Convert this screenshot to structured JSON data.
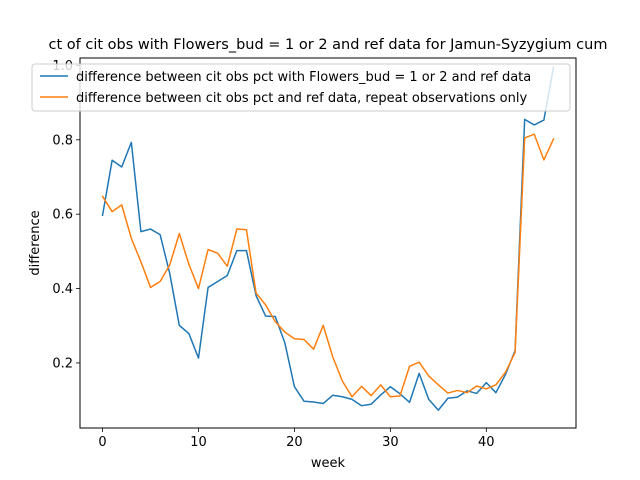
{
  "chart_data": {
    "type": "line",
    "title": "ct of cit obs with Flowers_bud = 1 or 2 and ref data for Jamun-Syzygium cum",
    "xlabel": "week",
    "ylabel": "difference",
    "xlim": [
      -2.35,
      49.35
    ],
    "ylim": [
      0.025,
      1.02
    ],
    "x_ticks": [
      0,
      10,
      20,
      30,
      40
    ],
    "y_ticks": [
      0.2,
      0.4,
      0.6,
      0.8,
      1.0
    ],
    "y_tick_labels": [
      "0.2",
      "0.4",
      "0.6",
      "0.8",
      "1.0"
    ],
    "legend_position": "upper center",
    "grid": false,
    "x": [
      0,
      1,
      2,
      3,
      4,
      5,
      6,
      7,
      8,
      9,
      10,
      11,
      12,
      13,
      14,
      15,
      16,
      17,
      18,
      19,
      20,
      21,
      22,
      23,
      24,
      25,
      26,
      27,
      28,
      29,
      30,
      31,
      32,
      33,
      34,
      35,
      36,
      37,
      38,
      39,
      40,
      41,
      42,
      43,
      44,
      45,
      46,
      47
    ],
    "series": [
      {
        "name": "difference between cit obs pct with Flowers_bud = 1 or 2 and ref data",
        "color": "#1f77b4",
        "values": [
          0.597,
          0.745,
          0.727,
          0.793,
          0.553,
          0.56,
          0.545,
          0.441,
          0.301,
          0.279,
          0.213,
          0.403,
          0.419,
          0.435,
          0.502,
          0.502,
          0.381,
          0.326,
          0.325,
          0.254,
          0.136,
          0.097,
          0.095,
          0.091,
          0.113,
          0.109,
          0.102,
          0.085,
          0.089,
          0.114,
          0.136,
          0.117,
          0.094,
          0.172,
          0.102,
          0.073,
          0.105,
          0.108,
          0.125,
          0.118,
          0.147,
          0.12,
          0.169,
          0.233,
          0.855,
          0.84,
          0.853,
          0.995
        ]
      },
      {
        "name": "difference between cit obs pct and ref data, repeat observations only",
        "color": "#ff7f0e",
        "values": [
          0.648,
          0.607,
          0.625,
          0.535,
          0.472,
          0.403,
          0.419,
          0.463,
          0.548,
          0.465,
          0.4,
          0.505,
          0.495,
          0.46,
          0.56,
          0.558,
          0.388,
          0.356,
          0.311,
          0.283,
          0.265,
          0.263,
          0.237,
          0.301,
          0.216,
          0.151,
          0.109,
          0.137,
          0.112,
          0.141,
          0.109,
          0.111,
          0.191,
          0.202,
          0.165,
          0.141,
          0.119,
          0.126,
          0.12,
          0.138,
          0.13,
          0.141,
          0.175,
          0.228,
          0.805,
          0.815,
          0.746,
          0.802
        ]
      }
    ]
  }
}
